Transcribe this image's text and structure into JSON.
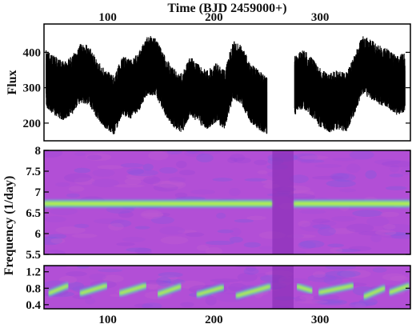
{
  "chart_data": {
    "type": "multi-panel time series with spectrograms",
    "top_axis_title": "Time (BJD 2459000+)",
    "x_ticks": [
      100,
      200,
      300
    ],
    "xlim": [
      40,
      385
    ],
    "data_gap": [
      255,
      275
    ],
    "panels": [
      {
        "id": "flux",
        "type": "scatter",
        "ylabel": "Flux",
        "ylim": [
          150,
          480
        ],
        "y_ticks": [
          200,
          300,
          400
        ],
        "segments": [
          {
            "x": [
              42,
              50,
              58,
              66,
              74,
              82,
              90,
              98,
              106,
              114,
              122,
              130,
              138,
              146,
              154,
              162,
              170,
              178,
              186,
              194,
              202,
              210,
              218,
              226,
              234,
              242,
              250
            ],
            "y": [
              320,
              300,
              285,
              300,
              335,
              330,
              290,
              260,
              245,
              300,
              290,
              315,
              360,
              350,
              300,
              265,
              250,
              300,
              275,
              260,
              280,
              260,
              345,
              330,
              280,
              260,
              240
            ]
          },
          {
            "x": [
              276,
              284,
              292,
              300,
              308,
              316,
              324,
              332,
              340,
              348,
              356,
              364,
              372,
              380
            ],
            "y": [
              300,
              320,
              295,
              265,
              250,
              260,
              250,
              300,
              360,
              345,
              330,
              320,
              300,
              310
            ]
          }
        ],
        "scatter_amplitude": 60
      },
      {
        "id": "spectrogram-high",
        "type": "heatmap",
        "ylabel": "Frequency (1/day)",
        "ylim": [
          5.5,
          8
        ],
        "y_ticks": [
          5.5,
          6,
          6.5,
          7,
          7.5,
          8
        ],
        "y_tick_labels": [
          "5.5",
          "6",
          "6.5",
          "7",
          "7.5",
          "8"
        ],
        "ridge_frequency": 6.72,
        "background_color": "#b24fd6",
        "ridge_color": "#b8f04a"
      },
      {
        "id": "spectrogram-low",
        "type": "heatmap",
        "ylim": [
          0.3,
          1.35
        ],
        "y_ticks": [
          0.4,
          0.8,
          1.2
        ],
        "y_tick_labels": [
          "0.4",
          "0.8",
          "1.2"
        ],
        "ridges": [
          {
            "x": [
              45,
              62
            ],
            "y": [
              0.68,
              0.86
            ]
          },
          {
            "x": [
              75,
              98
            ],
            "y": [
              0.68,
              0.86
            ]
          },
          {
            "x": [
              112,
              135
            ],
            "y": [
              0.68,
              0.86
            ]
          },
          {
            "x": [
              148,
              168
            ],
            "y": [
              0.66,
              0.84
            ]
          },
          {
            "x": [
              185,
              208
            ],
            "y": [
              0.65,
              0.82
            ]
          },
          {
            "x": [
              222,
              252
            ],
            "y": [
              0.62,
              0.84
            ]
          },
          {
            "x": [
              279,
              292
            ],
            "y": [
              0.84,
              0.74
            ]
          },
          {
            "x": [
              300,
              330
            ],
            "y": [
              0.7,
              0.86
            ]
          },
          {
            "x": [
              342,
              360
            ],
            "y": [
              0.6,
              0.8
            ]
          },
          {
            "x": [
              366,
              383
            ],
            "y": [
              0.7,
              0.86
            ]
          }
        ],
        "background_color": "#b24fd6",
        "ridge_color": "#b8f04a"
      }
    ]
  }
}
